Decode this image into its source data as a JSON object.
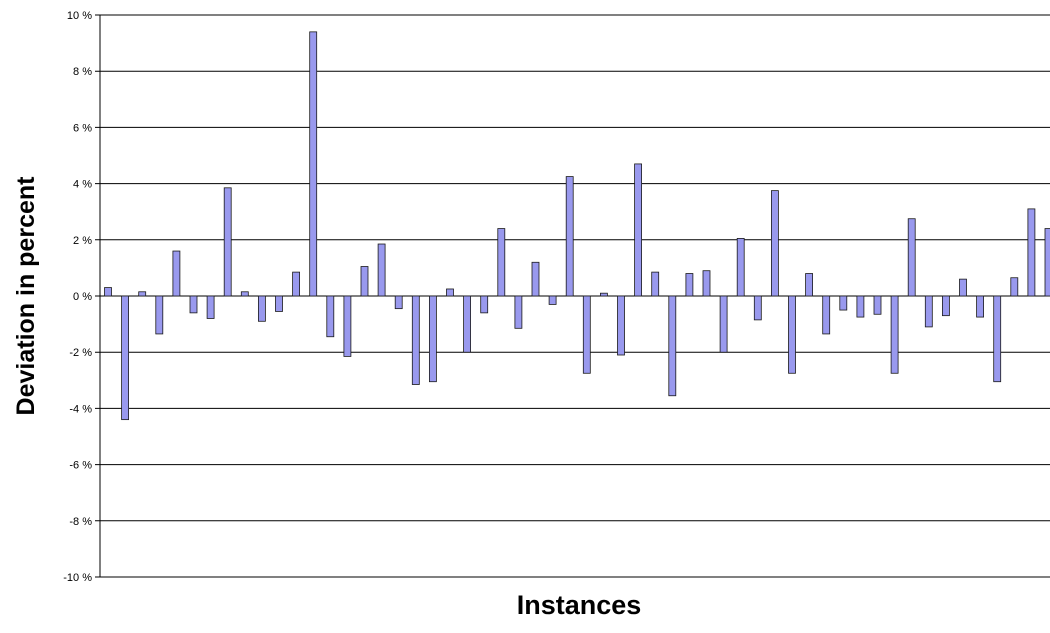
{
  "chart_data": {
    "type": "bar",
    "title": "",
    "xlabel": "Instances",
    "ylabel": "Deviation in percent",
    "ylim": [
      -10,
      10
    ],
    "y_ticks": [
      10,
      8,
      6,
      4,
      2,
      0,
      -2,
      -4,
      -6,
      -8,
      -10
    ],
    "y_tick_labels": [
      "10 %",
      "8 %",
      "6 %",
      "4 %",
      "2 %",
      "0 %",
      "-2 %",
      "-4 %",
      "-6 %",
      "-8 %",
      "-10 %"
    ],
    "grid": true,
    "legend": false,
    "colors": {
      "bar_fill": "#9999ee",
      "bar_stroke": "#1a1a1a",
      "grid": "#000000",
      "text": "#000000"
    },
    "series": [
      {
        "values": [
          0.3,
          -4.4,
          0.15,
          -1.35,
          1.6,
          -0.6,
          -0.8,
          3.85,
          0.15,
          -0.9,
          -0.55,
          0.85,
          9.4,
          -1.45,
          -2.15,
          1.05,
          1.85,
          -0.45,
          -3.15,
          -3.05,
          0.25,
          -2.0,
          -0.6,
          2.4,
          -1.15,
          1.2,
          -0.3,
          4.25,
          -2.75,
          0.1,
          -2.1,
          4.7,
          0.85,
          -3.55,
          0.8,
          0.9,
          -2.0,
          2.05,
          -0.85,
          3.75,
          -2.75,
          0.8,
          -1.35,
          -0.5,
          -0.75,
          -0.65,
          -2.75,
          2.75,
          -1.1,
          -0.7,
          0.6,
          -0.75,
          -3.05,
          0.65,
          3.1,
          2.4
        ]
      }
    ]
  }
}
